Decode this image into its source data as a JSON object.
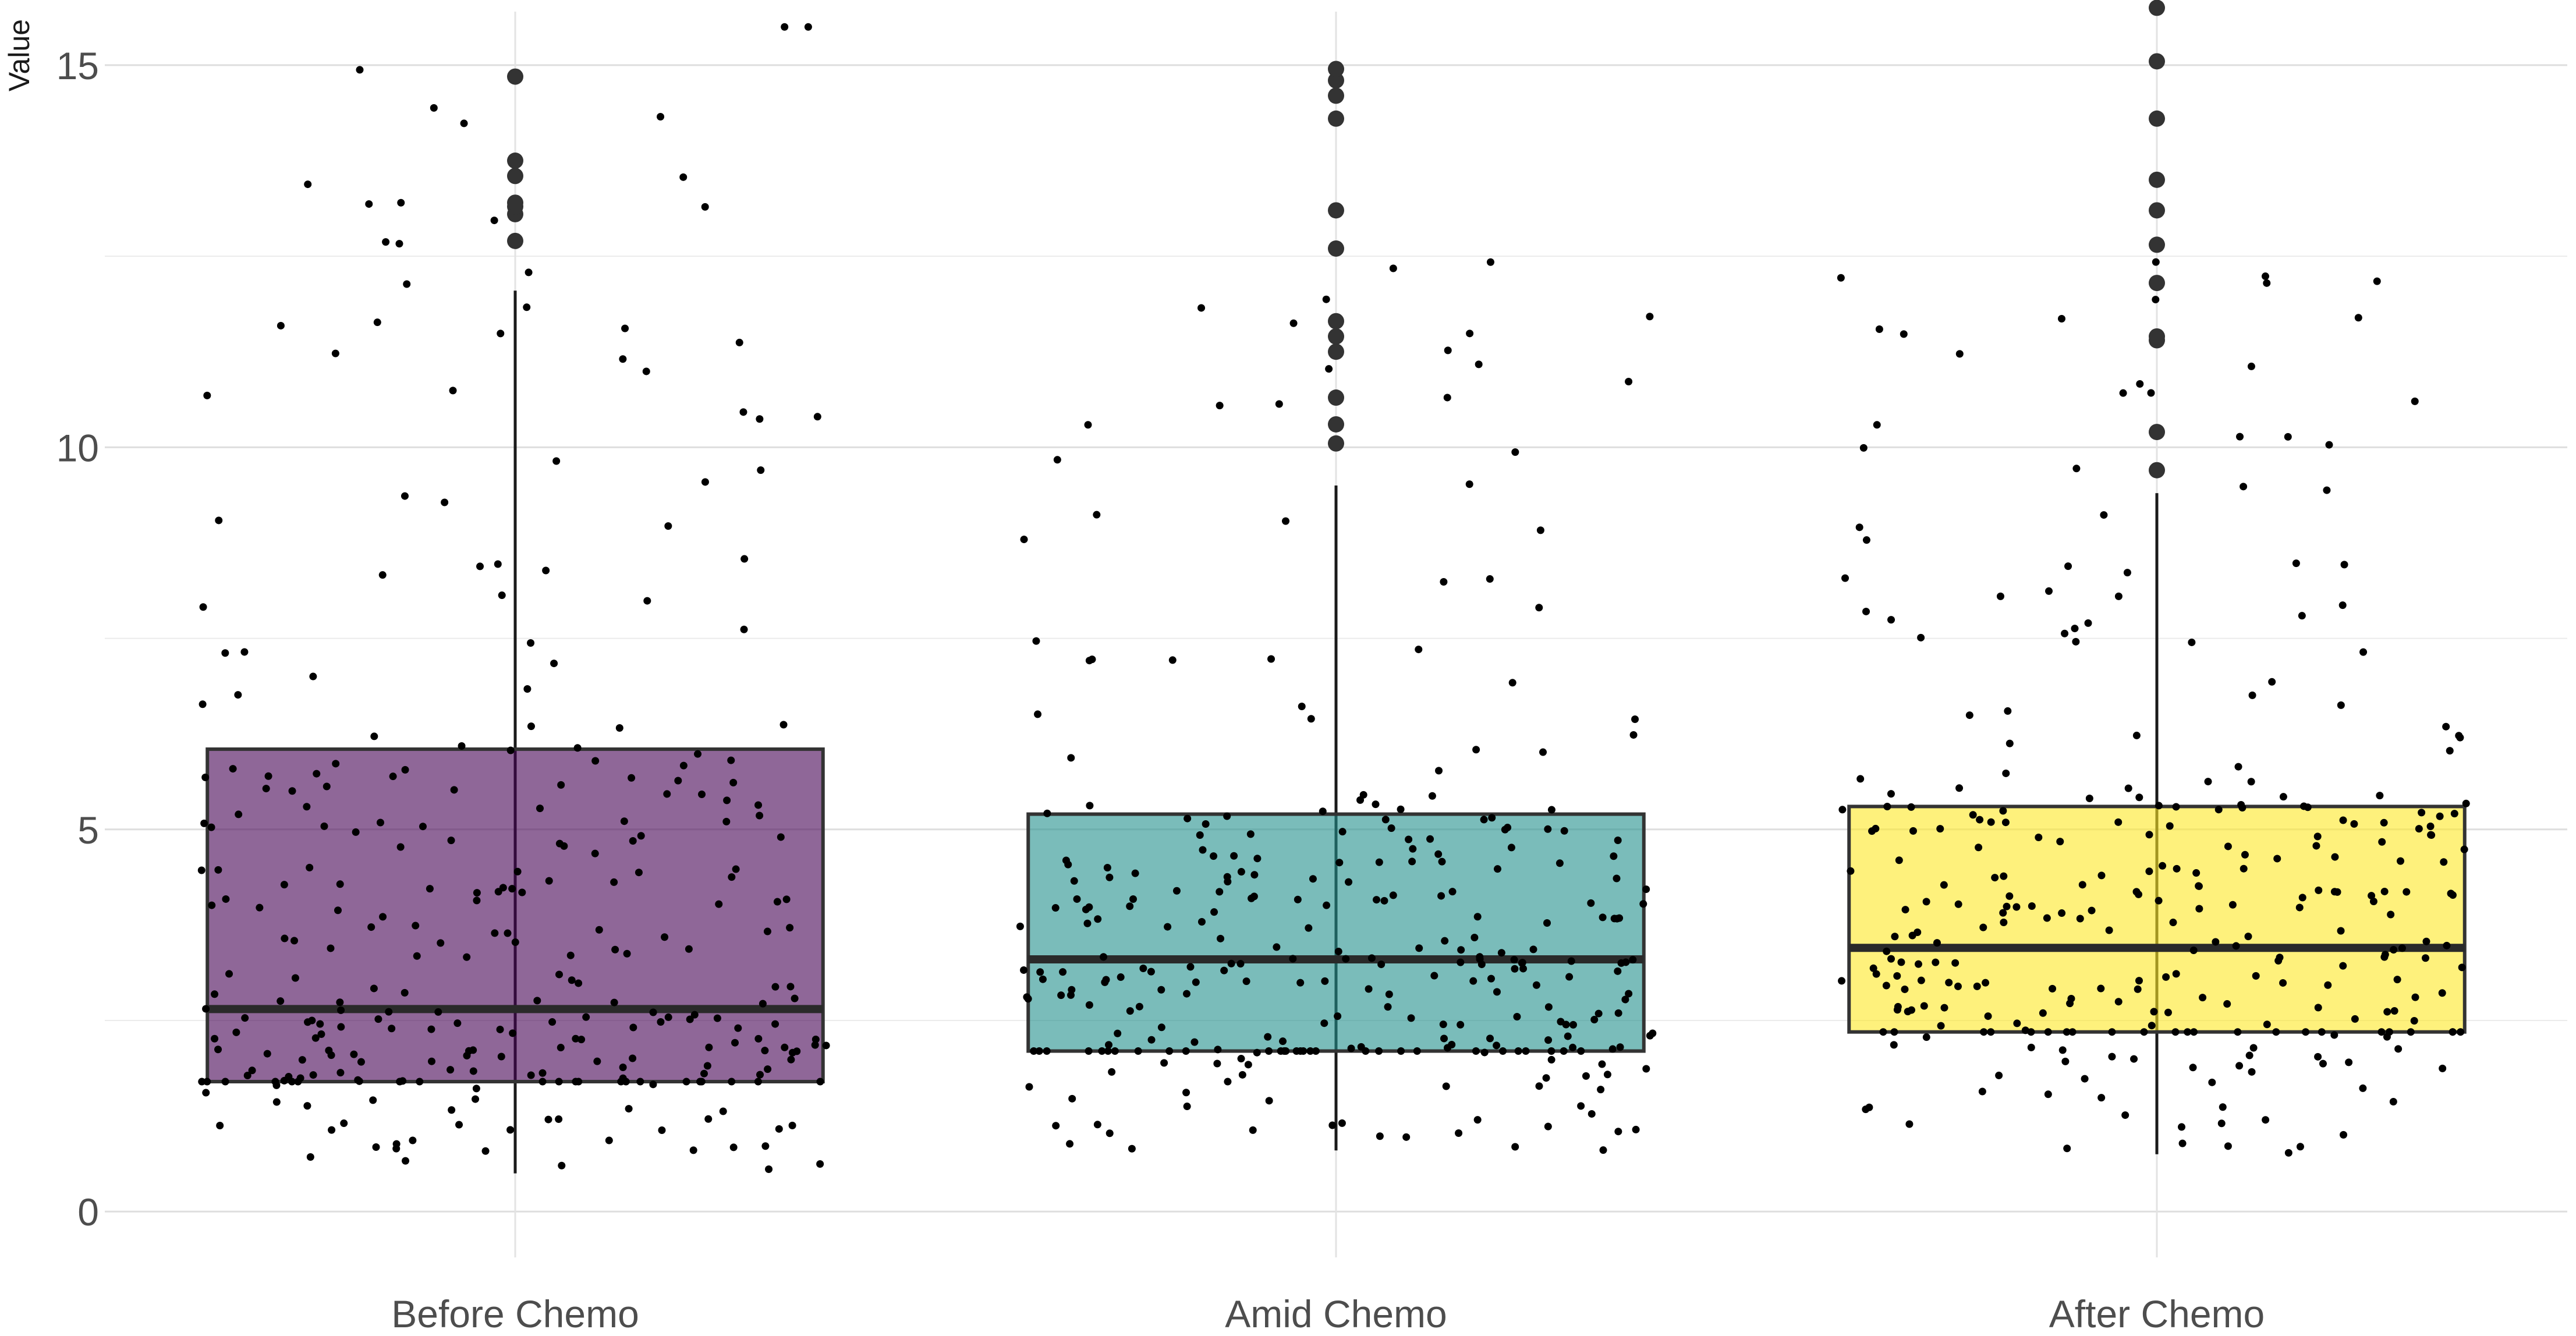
{
  "chart_data": {
    "type": "box",
    "ylabel": "Value",
    "xlabel": "",
    "ylim": [
      -0.6,
      15.7
    ],
    "yticks": [
      0,
      5,
      10,
      15
    ],
    "ytick_labels": [
      "0",
      "5",
      "10",
      "15"
    ],
    "grid": true,
    "legend": "none",
    "categories": [
      "Before Chemo",
      "Amid Chemo",
      "After Chemo"
    ],
    "boxes": [
      {
        "category": "Before Chemo",
        "color": "#440154",
        "min": 0.5,
        "q1": 1.7,
        "median": 2.65,
        "q3": 6.05,
        "whisker_high": 12.05,
        "outliers": [
          12.7,
          13.05,
          13.15,
          13.2,
          13.55,
          13.75,
          14.85
        ]
      },
      {
        "category": "Amid Chemo",
        "color": "#21908C",
        "min": 0.8,
        "q1": 2.1,
        "median": 3.3,
        "q3": 5.2,
        "whisker_high": 9.5,
        "outliers": [
          10.05,
          10.3,
          10.65,
          11.25,
          11.45,
          11.65,
          12.6,
          13.1,
          14.3,
          14.6,
          14.8,
          14.95
        ]
      },
      {
        "category": "After Chemo",
        "color": "#FDE725",
        "min": 0.75,
        "q1": 2.35,
        "median": 3.45,
        "q3": 5.3,
        "whisker_high": 9.4,
        "outliers": [
          9.7,
          10.2,
          11.4,
          11.45,
          12.15,
          12.65,
          13.1,
          13.5,
          14.3,
          15.05,
          15.75
        ]
      }
    ],
    "jitter_point_count_per_group": 300
  }
}
